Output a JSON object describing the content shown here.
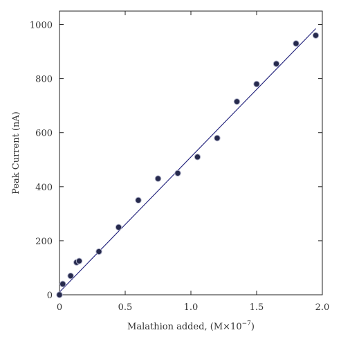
{
  "chart_data": {
    "type": "scatter",
    "title": "",
    "xlabel": "Malathion added, (M×10",
    "xlabel_sup": "−7",
    "xlabel_suffix": ")",
    "ylabel": "Peak Current (nA)",
    "xlim": [
      0,
      2.0
    ],
    "ylim": [
      0,
      1050
    ],
    "xticks": [
      0,
      0.5,
      1.0,
      1.5,
      2.0
    ],
    "xtick_labels": [
      "0",
      "0.5",
      "1.0",
      "1.5",
      "2.0"
    ],
    "yticks": [
      0,
      200,
      400,
      600,
      800,
      1000
    ],
    "ytick_labels": [
      "0",
      "200",
      "400",
      "600",
      "800",
      "1000"
    ],
    "grid": false,
    "legend": false,
    "series": [
      {
        "x": [
          0,
          0.025,
          0.085,
          0.13,
          0.15,
          0.3,
          0.45,
          0.6,
          0.75,
          0.9,
          1.05,
          1.2,
          1.35,
          1.5,
          1.65,
          1.8,
          1.95
        ],
        "y": [
          0,
          40,
          70,
          120,
          125,
          160,
          250,
          350,
          430,
          450,
          510,
          580,
          715,
          780,
          855,
          930,
          960
        ]
      }
    ],
    "fit_line": {
      "x": [
        0,
        1.95
      ],
      "y": [
        10,
        985
      ]
    },
    "colors": {
      "points": "#262a4d",
      "fit_line": "#1f1f7a",
      "axes": "#222222"
    }
  }
}
